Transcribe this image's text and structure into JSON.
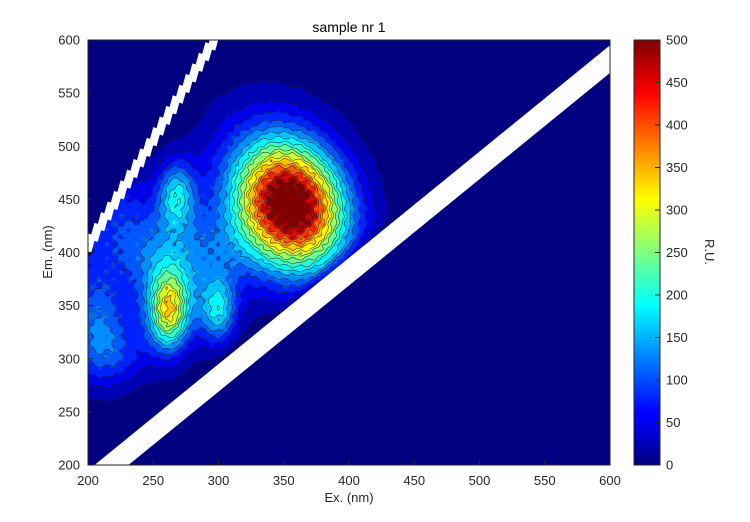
{
  "chart_data": {
    "type": "heatmap",
    "title": "sample nr 1",
    "xlabel": "Ex. (nm)",
    "ylabel": "Em. (nm)",
    "xlim": [
      200,
      600
    ],
    "ylim": [
      200,
      600
    ],
    "xticks": [
      "200",
      "250",
      "300",
      "350",
      "400",
      "450",
      "500",
      "550",
      "600"
    ],
    "yticks": [
      "200",
      "250",
      "300",
      "350",
      "400",
      "450",
      "500",
      "550",
      "600"
    ],
    "colorbar": {
      "label": "R.U.",
      "range": [
        0,
        500
      ],
      "ticks": [
        "0",
        "50",
        "100",
        "150",
        "200",
        "250",
        "300",
        "350",
        "400",
        "450",
        "500"
      ]
    },
    "colormap": "jet",
    "contour_levels": [
      25,
      50,
      75,
      100,
      125,
      150,
      175,
      200,
      225,
      250,
      275,
      300,
      325,
      350,
      375,
      400,
      425,
      450,
      475
    ],
    "peaks": [
      {
        "ex": 355,
        "em": 445,
        "value": 500
      },
      {
        "ex": 262,
        "em": 345,
        "value": 300
      },
      {
        "ex": 205,
        "em": 340,
        "value": 180
      }
    ],
    "scatter_bands": [
      {
        "name": "first-order",
        "ex_em_offset": 25
      },
      {
        "name": "second-order",
        "ex_em_ratio": 2
      }
    ],
    "grid": false
  }
}
